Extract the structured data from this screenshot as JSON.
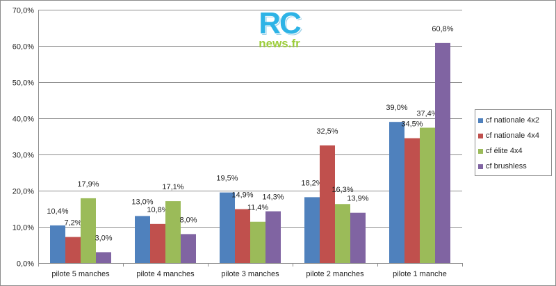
{
  "logo": {
    "main": "RC",
    "sub": "news.fr"
  },
  "chart_data": {
    "type": "bar",
    "categories": [
      "pilote 5 manches",
      "pilote 4 manches",
      "pilote 3 manches",
      "pilote 2 manches",
      "pilote 1 manche"
    ],
    "series": [
      {
        "name": "cf nationale 4x2",
        "color": "#4f81bd",
        "values": [
          10.4,
          13.0,
          19.5,
          18.2,
          39.0
        ],
        "labels": [
          "10,4%",
          "13,0%",
          "19,5%",
          "18,2%",
          "39,0%"
        ]
      },
      {
        "name": "cf nationale 4x4",
        "color": "#c0504d",
        "values": [
          7.2,
          10.8,
          14.9,
          32.5,
          34.5
        ],
        "labels": [
          "7,2%",
          "10,8%",
          "14,9%",
          "32,5%",
          "34,5%"
        ]
      },
      {
        "name": "cf élite 4x4",
        "color": "#9bbb59",
        "values": [
          17.9,
          17.1,
          11.4,
          16.3,
          37.4
        ],
        "labels": [
          "17,9%",
          "17,1%",
          "11,4%",
          "16,3%",
          "37,4%"
        ]
      },
      {
        "name": "cf brushless",
        "color": "#8064a2",
        "values": [
          3.0,
          8.0,
          14.3,
          13.9,
          60.8
        ],
        "labels": [
          "3,0%",
          "8,0%",
          "14,3%",
          "13,9%",
          "60,8%"
        ]
      }
    ],
    "ylim": [
      0,
      70
    ],
    "yticks": [
      0,
      10,
      20,
      30,
      40,
      50,
      60,
      70
    ],
    "ytick_labels": [
      "0,0%",
      "10,0%",
      "20,0%",
      "30,0%",
      "40,0%",
      "50,0%",
      "60,0%",
      "70,0%"
    ],
    "grid": true,
    "legend_position": "right"
  }
}
